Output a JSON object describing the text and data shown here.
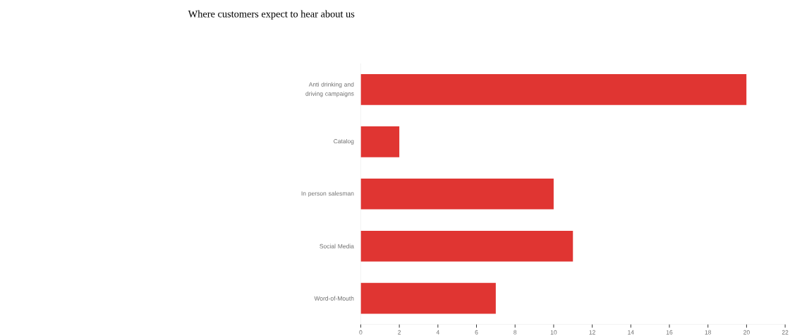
{
  "chart_data": {
    "type": "bar",
    "orientation": "horizontal",
    "title": "Where customers expect to hear about us",
    "categories": [
      "Anti drinking and driving campaigns",
      "Catalog",
      "In person salesman",
      "Social Media",
      "Word-of-Mouth"
    ],
    "values": [
      20,
      2,
      10,
      11,
      7
    ],
    "color": "#e03532",
    "xlim": [
      0,
      22
    ],
    "xticks": [
      0,
      2,
      4,
      6,
      8,
      10,
      12,
      14,
      16,
      18,
      20,
      22
    ]
  }
}
